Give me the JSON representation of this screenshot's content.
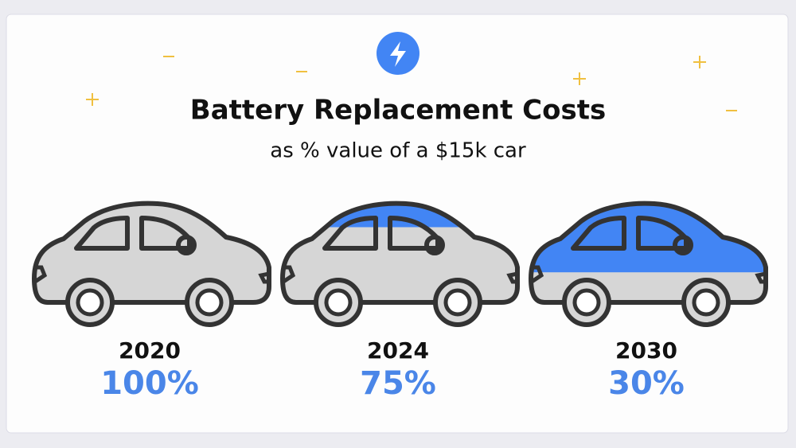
{
  "chart_data": {
    "type": "pictorial",
    "title": "Battery Replacement Costs",
    "subtitle": "as % value of a $15k car",
    "categories": [
      "2020",
      "2024",
      "2030"
    ],
    "values": [
      100,
      75,
      30
    ],
    "value_labels": [
      "100%",
      "75%",
      "30%"
    ],
    "ylim": [
      0,
      100
    ],
    "color": "#d6d6d6",
    "remainder_color": "#4285f4",
    "label_color": "#4a86e8"
  }
}
